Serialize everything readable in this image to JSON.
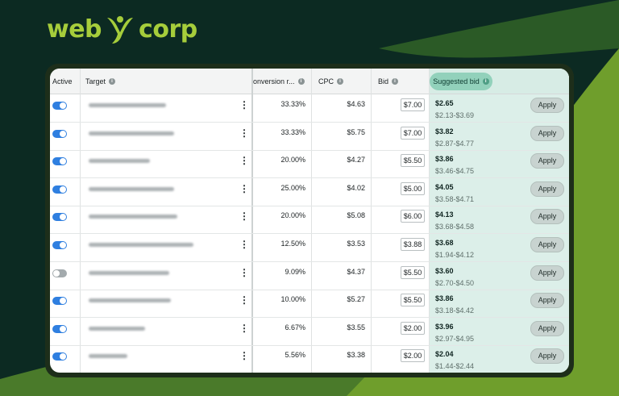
{
  "brand": {
    "logo_left": "web",
    "logo_right": "corp"
  },
  "colors": {
    "accent_green": "#a6cd3b",
    "toggle_on": "#2f7fe0",
    "suggested_bg": "#dcefe9"
  },
  "table": {
    "headers": {
      "active": "Active",
      "target": "Target",
      "conversion": "onversion r...",
      "cpc": "CPC",
      "bid": "Bid",
      "suggested": "Suggested bid"
    },
    "apply_label": "Apply",
    "rows": [
      {
        "active": true,
        "conversion": "33.33%",
        "cpc": "$4.63",
        "bid": "$7.00",
        "suggested": "$2.65",
        "range": "$2.13-$3.69"
      },
      {
        "active": true,
        "conversion": "33.33%",
        "cpc": "$5.75",
        "bid": "$7.00",
        "suggested": "$3.82",
        "range": "$2.87-$4.77"
      },
      {
        "active": true,
        "conversion": "20.00%",
        "cpc": "$4.27",
        "bid": "$5.50",
        "suggested": "$3.86",
        "range": "$3.46-$4.75"
      },
      {
        "active": true,
        "conversion": "25.00%",
        "cpc": "$4.02",
        "bid": "$5.00",
        "suggested": "$4.05",
        "range": "$3.58-$4.71"
      },
      {
        "active": true,
        "conversion": "20.00%",
        "cpc": "$5.08",
        "bid": "$6.00",
        "suggested": "$4.13",
        "range": "$3.68-$4.58"
      },
      {
        "active": true,
        "conversion": "12.50%",
        "cpc": "$3.53",
        "bid": "$3.88",
        "suggested": "$3.68",
        "range": "$1.94-$4.12"
      },
      {
        "active": false,
        "conversion": "9.09%",
        "cpc": "$4.37",
        "bid": "$5.50",
        "suggested": "$3.60",
        "range": "$2.70-$4.50"
      },
      {
        "active": true,
        "conversion": "10.00%",
        "cpc": "$5.27",
        "bid": "$5.50",
        "suggested": "$3.86",
        "range": "$3.18-$4.42"
      },
      {
        "active": true,
        "conversion": "6.67%",
        "cpc": "$3.55",
        "bid": "$2.00",
        "suggested": "$3.96",
        "range": "$2.97-$4.95"
      },
      {
        "active": true,
        "conversion": "5.56%",
        "cpc": "$3.38",
        "bid": "$2.00",
        "suggested": "$2.04",
        "range": "$1.44-$2.44"
      }
    ]
  }
}
